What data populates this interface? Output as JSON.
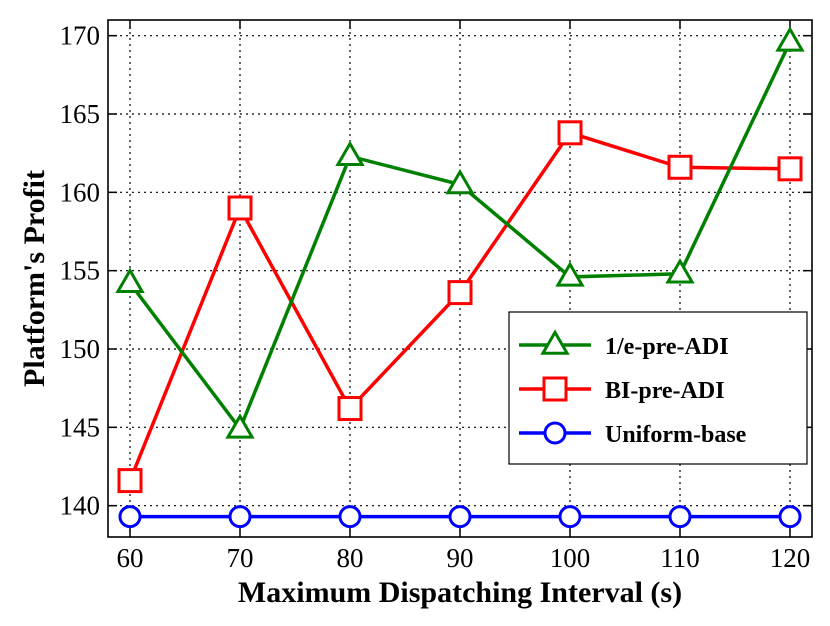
{
  "chart_data": {
    "type": "line",
    "title": "",
    "xlabel": "Maximum Dispatching Interval (s)",
    "ylabel": "Platform's Profit",
    "x": [
      60,
      70,
      80,
      90,
      100,
      110,
      120
    ],
    "xlim": [
      58,
      122
    ],
    "ylim": [
      138,
      171
    ],
    "xticks": [
      "60",
      "70",
      "80",
      "90",
      "100",
      "110",
      "120"
    ],
    "yticks": [
      "140",
      "145",
      "150",
      "155",
      "160",
      "165",
      "170"
    ],
    "grid": true,
    "legend_position": "lower-right",
    "series": [
      {
        "name": "1/e-pre-ADI",
        "color": "#008000",
        "marker": "triangle",
        "values": [
          154.2,
          144.9,
          162.3,
          160.5,
          154.6,
          154.8,
          169.6
        ]
      },
      {
        "name": "BI-pre-ADI",
        "color": "#ff0000",
        "marker": "square",
        "values": [
          141.6,
          159.0,
          146.2,
          153.6,
          163.8,
          161.6,
          161.5
        ]
      },
      {
        "name": "Uniform-base",
        "color": "#0000ff",
        "marker": "circle",
        "values": [
          139.3,
          139.3,
          139.3,
          139.3,
          139.3,
          139.3,
          139.3
        ]
      }
    ]
  }
}
